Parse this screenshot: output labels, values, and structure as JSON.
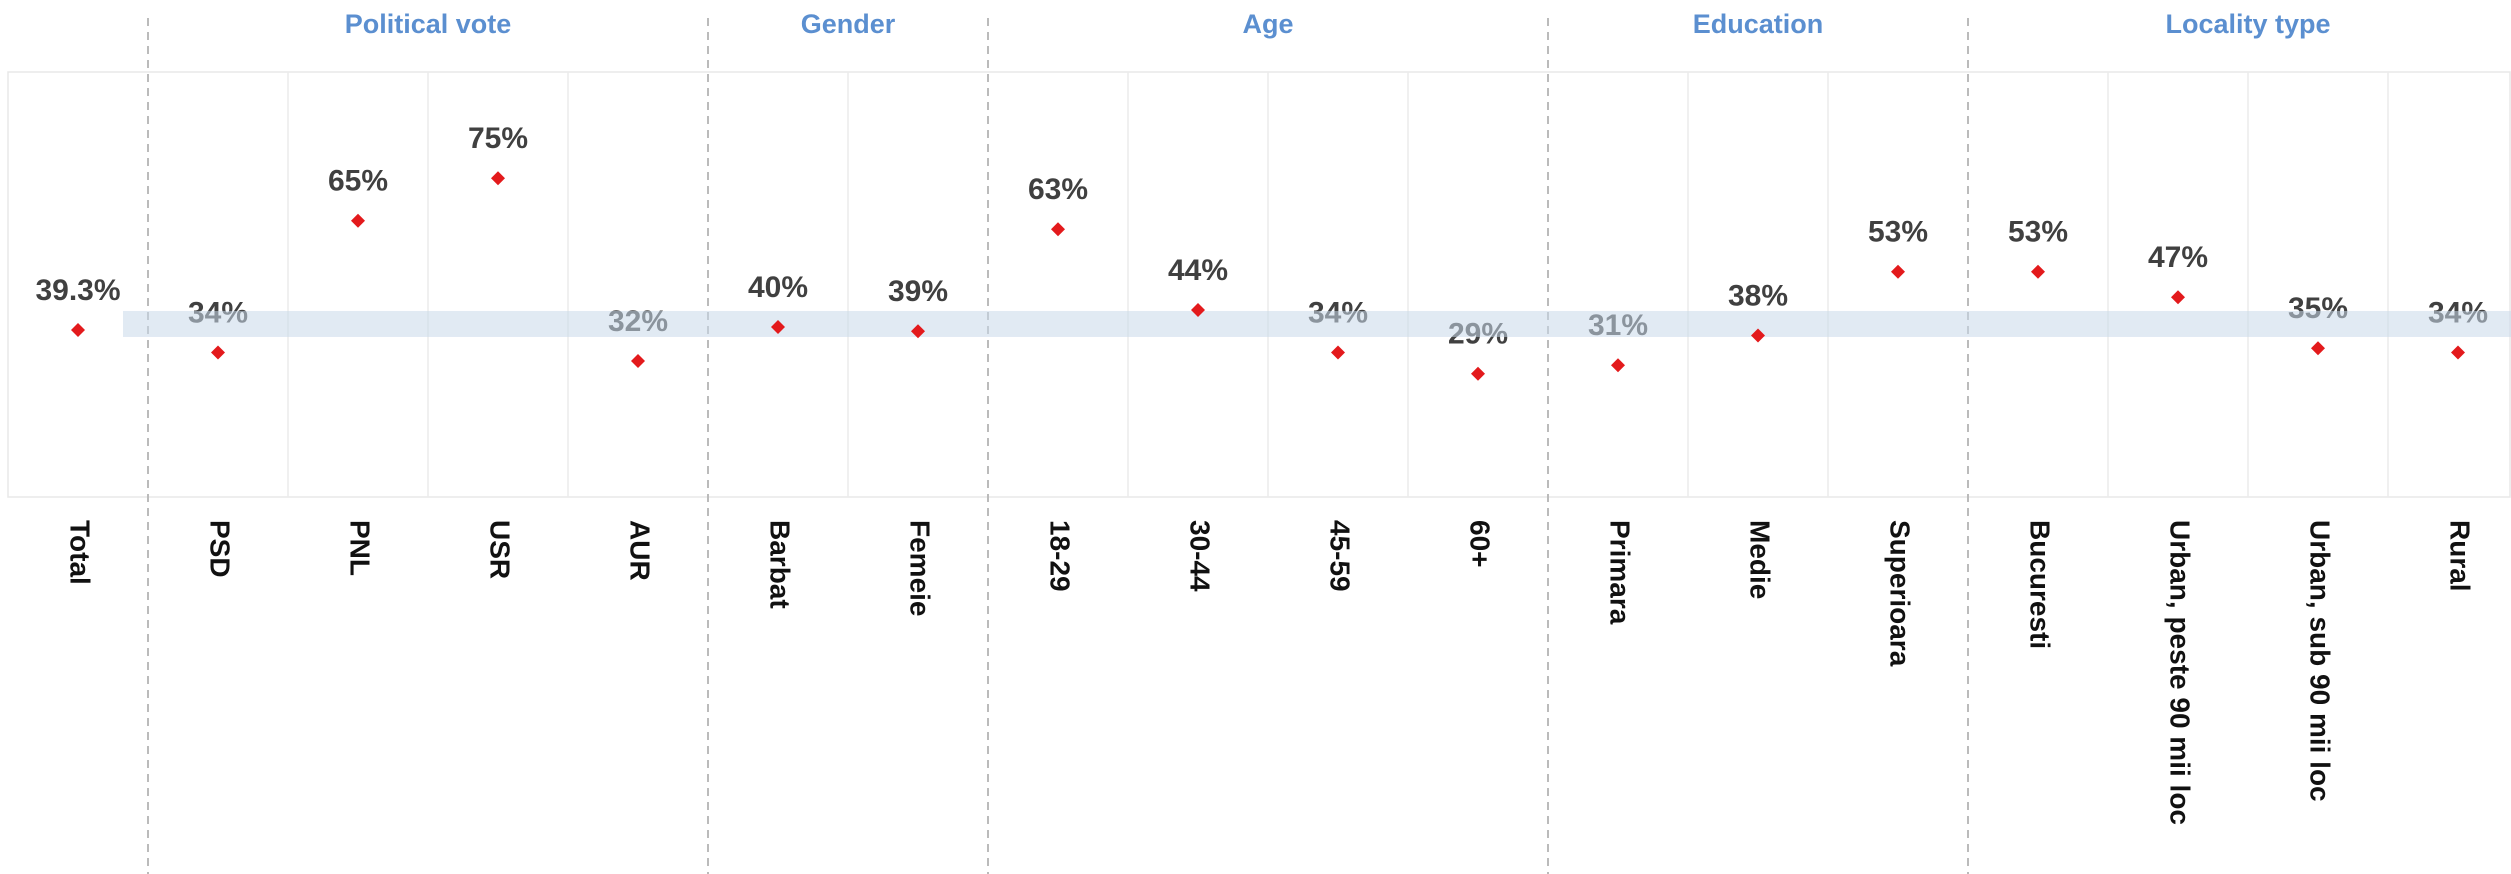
{
  "chart_data": {
    "type": "dot",
    "color": "#e31a1c",
    "band_color": "#c9d9ea",
    "group_color": "#5b8fd0",
    "ylim": [
      0,
      100
    ],
    "groups": [
      {
        "name": null,
        "categories": [
          "Total"
        ],
        "values": [
          39.3
        ],
        "value_labels": [
          "39.3%"
        ]
      },
      {
        "name": "Political vote",
        "categories": [
          "PSD",
          "PNL",
          "USR",
          "AUR"
        ],
        "values": [
          34,
          65,
          75,
          32
        ],
        "value_labels": [
          "34%",
          "65%",
          "75%",
          "32%"
        ]
      },
      {
        "name": "Gender",
        "categories": [
          "Barbat",
          "Femeie"
        ],
        "values": [
          40,
          39
        ],
        "value_labels": [
          "40%",
          "39%"
        ]
      },
      {
        "name": "Age",
        "categories": [
          "18-29",
          "30-44",
          "45-59",
          "60+"
        ],
        "values": [
          63,
          44,
          34,
          29
        ],
        "value_labels": [
          "63%",
          "44%",
          "34%",
          "29%"
        ]
      },
      {
        "name": "Education",
        "categories": [
          "Primara",
          "Medie",
          "Superioara"
        ],
        "values": [
          31,
          38,
          53
        ],
        "value_labels": [
          "31%",
          "38%",
          "53%"
        ]
      },
      {
        "name": "Locality type",
        "categories": [
          "Bucuresti",
          "Urban, peste 90 mii loc",
          "Urban, sub 90 mii loc",
          "Rural"
        ],
        "values": [
          53,
          47,
          35,
          34
        ],
        "value_labels": [
          "53%",
          "47%",
          "35%",
          "34%"
        ]
      }
    ]
  }
}
